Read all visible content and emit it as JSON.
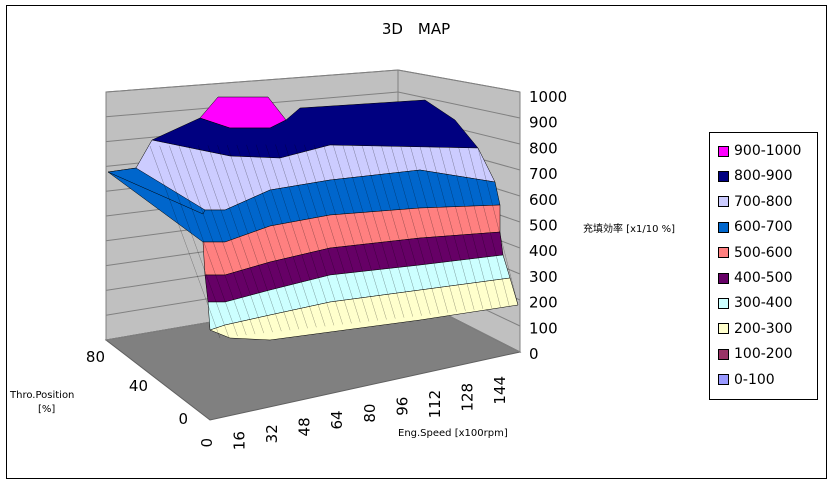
{
  "chart_data": {
    "type": "surface3d",
    "title": "3D　MAP",
    "zlabel": "充填効率 [x1/10 %]",
    "xlabel": "Eng.Speed [x100rpm]",
    "ylabel_line1": "Thro.Position",
    "ylabel_line2": "[%]",
    "z_ticks": [
      "0",
      "100",
      "200",
      "300",
      "400",
      "500",
      "600",
      "700",
      "800",
      "900",
      "1000"
    ],
    "x_ticks": [
      "0",
      "16",
      "32",
      "48",
      "64",
      "80",
      "96",
      "112",
      "128",
      "144"
    ],
    "y_ticks": [
      "0",
      "40",
      "80"
    ],
    "zlim": [
      0,
      1000
    ],
    "xlim": [
      0,
      150
    ],
    "ylim": [
      0,
      90
    ],
    "legend": [
      {
        "label": "900-1000",
        "color": "#ff00ff"
      },
      {
        "label": "800-900",
        "color": "#000080"
      },
      {
        "label": "700-800",
        "color": "#ccccff"
      },
      {
        "label": "600-700",
        "color": "#0066cc"
      },
      {
        "label": "500-600",
        "color": "#ff8080"
      },
      {
        "label": "400-500",
        "color": "#660066"
      },
      {
        "label": "300-400",
        "color": "#ccffff"
      },
      {
        "label": "200-300",
        "color": "#ffffcc"
      },
      {
        "label": "100-200",
        "color": "#993366"
      },
      {
        "label": "0-100",
        "color": "#9999ff"
      }
    ],
    "colors": {
      "wall": "#c0c0c0",
      "floor": "#808080",
      "wall_shadow": "#a0a0a0",
      "grid": "#000000"
    }
  }
}
